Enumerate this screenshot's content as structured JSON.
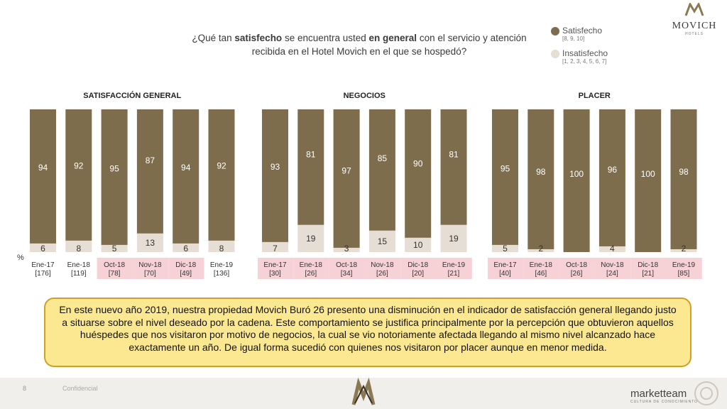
{
  "brand": {
    "logo_text": "MOVICH",
    "logo_sub": "HOTELS"
  },
  "question": {
    "pre": "¿Qué tan ",
    "b1": "satisfecho",
    "mid": " se encuentra usted ",
    "b2": "en general",
    "post": " con el servicio y atención recibida en el Hotel Movich en el que se hospedó?"
  },
  "legend": [
    {
      "label": "Satisfecho",
      "range": "[8, 9, 10]",
      "color": "#7d6d4c"
    },
    {
      "label": "Insatisfecho",
      "range": "[1, 2, 3, 4, 5, 6, 7]",
      "color": "#e6ddd4"
    }
  ],
  "colors": {
    "satisfied": "#7d6d4c",
    "unsatisfied": "#e6ddd4",
    "highlight": "#f6d2d6"
  },
  "chart_data": [
    {
      "type": "bar",
      "title": "SATISFACCIÓN GENERAL",
      "unit": "%",
      "categories": [
        "Ene-17",
        "Ene-18",
        "Oct-18",
        "Nov-18",
        "Dic-18",
        "Ene-19"
      ],
      "bases": [
        "[176]",
        "[119]",
        "[78]",
        "[70]",
        "[49]",
        "[136]"
      ],
      "highlighted": [
        false,
        false,
        true,
        true,
        true,
        false
      ],
      "series": [
        {
          "name": "Satisfecho",
          "values": [
            94,
            92,
            95,
            87,
            94,
            92
          ]
        },
        {
          "name": "Insatisfecho",
          "values": [
            6,
            8,
            5,
            13,
            6,
            8
          ]
        }
      ]
    },
    {
      "type": "bar",
      "title": "NEGOCIOS",
      "categories": [
        "Ene-17",
        "Ene-18",
        "Oct-18",
        "Nov-18",
        "Dic-18",
        "Ene-19"
      ],
      "bases": [
        "[30]",
        "[26]",
        "[34]",
        "[26]",
        "[20]",
        "[21]"
      ],
      "highlighted": [
        true,
        true,
        true,
        true,
        true,
        true
      ],
      "series": [
        {
          "name": "Satisfecho",
          "values": [
            93,
            81,
            97,
            85,
            90,
            81
          ]
        },
        {
          "name": "Insatisfecho",
          "values": [
            7,
            19,
            3,
            15,
            10,
            19
          ]
        }
      ]
    },
    {
      "type": "bar",
      "title": "PLACER",
      "categories": [
        "Ene-17",
        "Ene-18",
        "Oct-18",
        "Nov-18",
        "Dic-18",
        "Ene-19"
      ],
      "bases": [
        "[40]",
        "[46]",
        "[26]",
        "[24]",
        "[21]",
        "[85]"
      ],
      "highlighted": [
        true,
        true,
        true,
        true,
        true,
        true
      ],
      "series": [
        {
          "name": "Satisfecho",
          "values": [
            95,
            98,
            100,
            96,
            100,
            98
          ]
        },
        {
          "name": "Insatisfecho",
          "values": [
            5,
            2,
            null,
            4,
            null,
            2
          ]
        }
      ]
    }
  ],
  "summary": "En este nuevo año 2019, nuestra propiedad Movich Buró 26 presento una disminución en el indicador de satisfacción general llegando justo a situarse sobre el nivel deseado por la cadena. Este comportamiento se justifica principalmente por la percepción que obtuvieron aquellos huéspedes que nos visitaron por motivo de negocios, la cual se vio notoriamente afectada llegando al mismo nivel alcanzado hace exactamente un año. De igual forma sucedió con quienes nos visitaron por placer aunque en menor medida.",
  "footer": {
    "page": "8",
    "label": "Confidencial",
    "company": "marketteam",
    "company_sub": "CULTURA DE CONOCIMIENTO"
  }
}
